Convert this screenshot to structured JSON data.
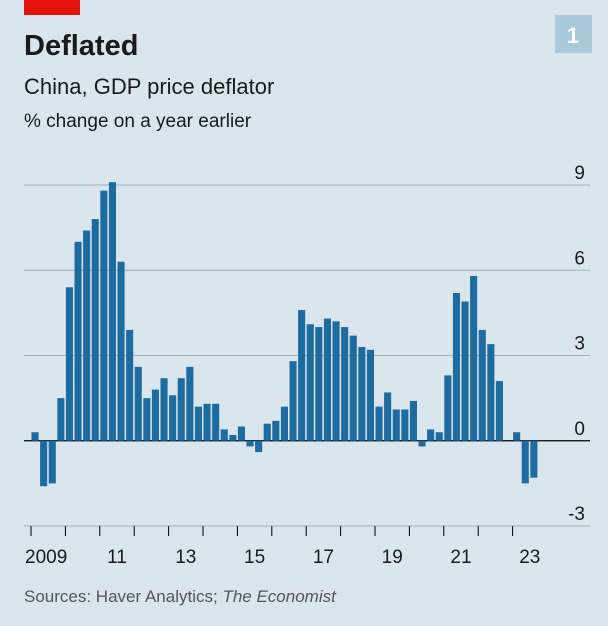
{
  "chart_data": {
    "type": "bar",
    "title": "Deflated",
    "subtitle": "China, GDP price deflator",
    "unit_label": "% change on a year earlier",
    "chart_number": "1",
    "source": "Sources: Haver Analytics;",
    "source_publication": "The Economist",
    "categories": [
      "2009",
      null,
      null,
      null,
      null,
      null,
      null,
      null,
      "11",
      null,
      null,
      null,
      null,
      null,
      null,
      null,
      "13",
      null,
      null,
      null,
      null,
      null,
      null,
      null,
      "15",
      null,
      null,
      null,
      null,
      null,
      null,
      null,
      "17",
      null,
      null,
      null,
      null,
      null,
      null,
      null,
      "19",
      null,
      null,
      null,
      null,
      null,
      null,
      null,
      "21",
      null,
      null,
      null,
      null,
      null,
      null,
      null,
      "23",
      null,
      null
    ],
    "values": [
      0.3,
      -1.6,
      -1.5,
      1.5,
      5.4,
      7.0,
      7.4,
      7.8,
      8.8,
      9.1,
      6.3,
      3.9,
      2.6,
      1.5,
      1.8,
      2.2,
      1.6,
      2.2,
      2.6,
      1.2,
      1.3,
      1.3,
      0.4,
      0.2,
      0.5,
      -0.2,
      -0.4,
      0.6,
      0.7,
      1.2,
      2.8,
      4.6,
      4.1,
      4.0,
      4.3,
      4.2,
      4.0,
      3.7,
      3.3,
      3.2,
      1.2,
      1.7,
      1.1,
      1.1,
      1.4,
      -0.2,
      0.4,
      0.3,
      2.3,
      5.2,
      4.9,
      5.8,
      3.9,
      3.4,
      2.1,
      0,
      0.3,
      -1.5,
      -1.3
    ],
    "color": "#1d6b9f",
    "ylim": [
      -3,
      9
    ],
    "yticks": [
      -3,
      0,
      3,
      6,
      9
    ],
    "grid": true
  }
}
